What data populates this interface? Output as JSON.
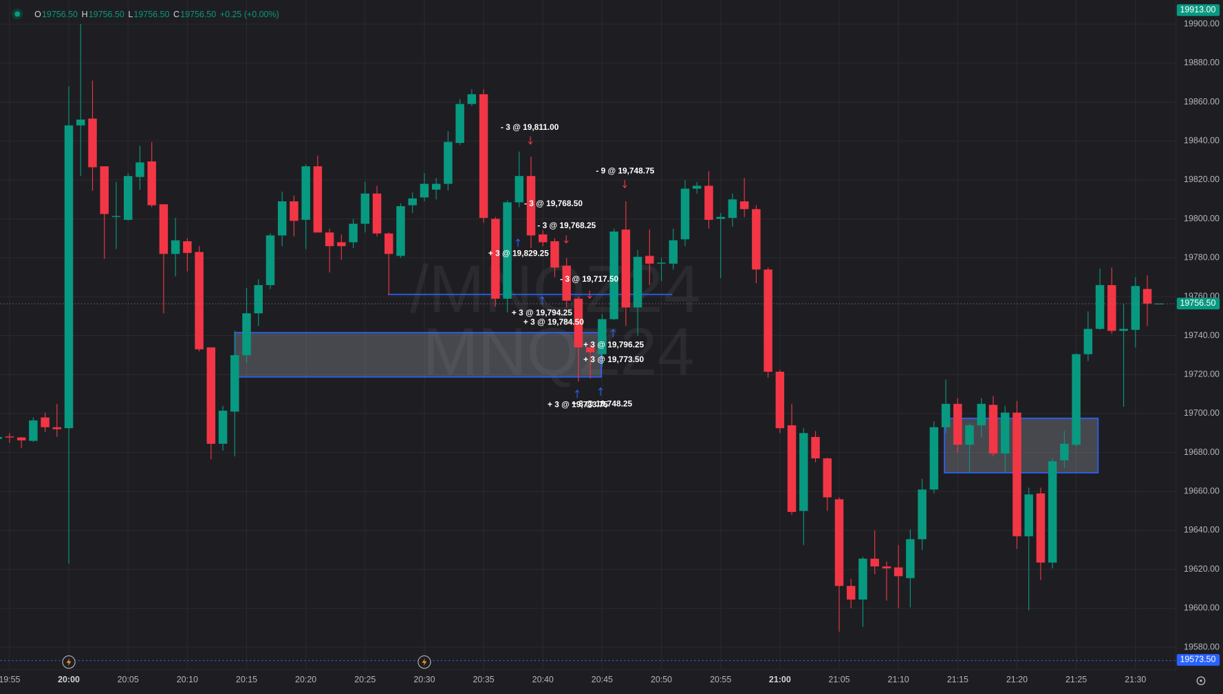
{
  "header": {
    "ohlc": [
      {
        "key": "O",
        "value": "19756.50"
      },
      {
        "key": "H",
        "value": "19756.50"
      },
      {
        "key": "L",
        "value": "19756.50"
      },
      {
        "key": "C",
        "value": "19756.50"
      }
    ],
    "change": "+0.25 (+0.00%)"
  },
  "chart_data": {
    "type": "candlestick",
    "watermark": [
      "/MNQZ24",
      "MNQZ24"
    ],
    "up_color": "#089981",
    "down_color": "#f23645",
    "grid": true,
    "ylim": [
      19568.4,
      19912.4
    ],
    "yticks": [
      {
        "value": 19580,
        "label": "19580.00"
      },
      {
        "value": 19600,
        "label": "19600.00"
      },
      {
        "value": 19620,
        "label": "19620.00"
      },
      {
        "value": 19640,
        "label": "19640.00"
      },
      {
        "value": 19660,
        "label": "19660.00"
      },
      {
        "value": 19680,
        "label": "19680.00"
      },
      {
        "value": 19700,
        "label": "19700.00"
      },
      {
        "value": 19720,
        "label": "19720.00"
      },
      {
        "value": 19740,
        "label": "19740.00"
      },
      {
        "value": 19760,
        "label": "19760.00"
      },
      {
        "value": 19780,
        "label": "19780.00"
      },
      {
        "value": 19800,
        "label": "19800.00"
      },
      {
        "value": 19820,
        "label": "19820.00"
      },
      {
        "value": 19840,
        "label": "19840.00"
      },
      {
        "value": 19860,
        "label": "19860.00"
      },
      {
        "value": 19880,
        "label": "19880.00"
      },
      {
        "value": 19900,
        "label": "19900.00"
      }
    ],
    "categories": [
      null,
      "19:55",
      null,
      null,
      null,
      null,
      "20:00",
      null,
      null,
      null,
      null,
      "20:05",
      null,
      null,
      null,
      null,
      "20:10",
      null,
      null,
      null,
      null,
      "20:15",
      null,
      null,
      null,
      null,
      "20:20",
      null,
      null,
      null,
      null,
      "20:25",
      null,
      null,
      null,
      null,
      "20:30",
      null,
      null,
      null,
      null,
      "20:35",
      null,
      null,
      null,
      null,
      "20:40",
      null,
      null,
      null,
      null,
      "20:45",
      null,
      null,
      null,
      null,
      "20:50",
      null,
      null,
      null,
      null,
      "20:55",
      null,
      null,
      null,
      null,
      "21:00",
      null,
      null,
      null,
      null,
      "21:05",
      null,
      null,
      null,
      null,
      "21:10",
      null,
      null,
      null,
      null,
      "21:15",
      null,
      null,
      null,
      null,
      "21:20",
      null,
      null,
      null,
      null,
      "21:25",
      null,
      null,
      null,
      null,
      "21:30",
      null,
      null
    ],
    "open": [
      19687,
      19688.25,
      19687.75,
      19686,
      19698,
      19693,
      19692.5,
      19848,
      19851.5,
      19827,
      19801,
      19799.5,
      19821.5,
      19829.5,
      19807.5,
      19782,
      19788.5,
      19783,
      19734,
      19684.5,
      19701,
      19730,
      19751.5,
      19766,
      19791.5,
      19809,
      19799.5,
      19827,
      19793,
      19788,
      19788,
      19797.5,
      19813,
      19792.5,
      19781,
      19807,
      19811,
      19815,
      19818,
      19839,
      19859,
      19864,
      19800,
      19759,
      19808.5,
      19822,
      19792,
      19788.5,
      19776,
      19759,
      19734,
      19730.5,
      19748.5,
      19794.5,
      19754.5,
      19781,
      19777,
      19777,
      19789.5,
      19815.5,
      19817,
      19800,
      19800.5,
      19809,
      19805,
      19774,
      19721.5,
      19694,
      19650,
      19688,
      19677,
      19656,
      19611.5,
      19604.5,
      19625.5,
      19621.5,
      19621,
      19615.5,
      19635.5,
      19661,
      19693,
      19705,
      19684,
      19694,
      19704.5,
      19679.5,
      19700.5,
      19637,
      19659,
      19623.5,
      19676,
      19684,
      19730.5,
      19743.5,
      19766,
      19742.5,
      19743,
      19764,
      19756.5
    ],
    "high": [
      19689,
      19690,
      19688,
      19698,
      19700.5,
      19705,
      19868,
      19900,
      19871,
      19827,
      19819,
      19823.5,
      19837.5,
      19839.5,
      19807.5,
      19800.5,
      19790,
      19786,
      19734,
      19704,
      19742.5,
      19764.5,
      19769,
      19792.5,
      19814,
      19812,
      19828,
      19832.5,
      19795,
      19792,
      19800,
      19819,
      19817,
      19793,
      19808,
      19813.5,
      19823.5,
      19821,
      19845,
      19861.5,
      19866.5,
      19866.5,
      19801,
      19809.5,
      19834.5,
      19832,
      19794,
      19790,
      19780,
      19760,
      19736,
      19751,
      19795,
      19809,
      19784,
      19794.5,
      19780,
      19795,
      19820,
      19819,
      19824.5,
      19803,
      19813,
      19821,
      19807,
      19775,
      19722.5,
      19705,
      19692.5,
      19691,
      19677.5,
      19657,
      19615,
      19626.5,
      19640,
      19624,
      19632.5,
      19640.5,
      19666.5,
      19696,
      19717.5,
      19708,
      19695,
      19708,
      19709,
      19704,
      19706.5,
      19662,
      19662,
      19677,
      19691,
      19731,
      19752.5,
      19774.5,
      19775,
      19756.5,
      19770,
      19771,
      19756.5
    ],
    "low": [
      19686,
      19685,
      19682.25,
      19685.5,
      19690.5,
      19688,
      19623,
      19822,
      19814.5,
      19779.5,
      19784.5,
      19799,
      19815,
      19806,
      19751.5,
      19770.5,
      19773,
      19732,
      19676.5,
      19681,
      19678,
      19726,
      19745,
      19764,
      19786,
      19791,
      19784.5,
      19793,
      19772.5,
      19779,
      19785,
      19793,
      19791,
      19761,
      19780,
      19803,
      19809,
      19810,
      19814.5,
      19838,
      19858,
      19798,
      19755,
      19752,
      19806,
      19785,
      19786,
      19770,
      19754.5,
      19716.5,
      19718,
      19724,
      19748,
      19745,
      19740,
      19766,
      19768,
      19774,
      19786,
      19813,
      19795,
      19769.5,
      19796,
      19801,
      19767,
      19718.5,
      19690,
      19648,
      19632.5,
      19675,
      19650,
      19588,
      19600,
      19590.5,
      19617.5,
      19604,
      19600,
      19600.5,
      19630,
      19659,
      19690,
      19680,
      19670,
      19688,
      19678,
      19670,
      19630.5,
      19599,
      19614.5,
      19620.5,
      19672,
      19683,
      19727,
      19743,
      19741,
      19703.5,
      19734,
      19745,
      19756.5
    ],
    "close": [
      19688,
      19687.75,
      19686.25,
      19696.5,
      19693,
      19692,
      19848,
      19851,
      19826.5,
      19802.5,
      19801.5,
      19822,
      19829,
      19807,
      19782,
      19789,
      19782.5,
      19733,
      19684.5,
      19701.5,
      19730,
      19751.5,
      19766,
      19791.5,
      19809,
      19799,
      19827,
      19793,
      19786,
      19786,
      19797.5,
      19813,
      19792.5,
      19782,
      19806.5,
      19810.5,
      19818,
      19818,
      19839.5,
      19859,
      19864,
      19800.5,
      19759,
      19808.5,
      19822,
      19791.5,
      19788,
      19775,
      19758,
      19734,
      19731.5,
      19748.5,
      19793.5,
      19754.5,
      19780.5,
      19777,
      19777.5,
      19789,
      19815.5,
      19817,
      19799.5,
      19801,
      19810,
      19805,
      19774,
      19721.5,
      19692.5,
      19649.5,
      19690,
      19677,
      19657,
      19611.5,
      19604.5,
      19625.5,
      19621.5,
      19620.5,
      19616.5,
      19635.5,
      19661,
      19693,
      19705,
      19684,
      19694,
      19705,
      19679.5,
      19700.5,
      19637,
      19658.5,
      19623.5,
      19675.5,
      19684.5,
      19730.5,
      19743.5,
      19766,
      19742.5,
      19743.5,
      19765.5,
      19756.5,
      19756.5
    ],
    "annotations": [
      "- 3 @ 19,811.00",
      "- 9 @ 19,748.75",
      "- 3 @ 19,768.50",
      "- 3 @ 19,768.25",
      "+ 3 @ 19,829.25",
      "- 3 @ 19,717.50",
      "+ 3 @ 19,794.25",
      "+ 3 @ 19,784.50",
      "+ 3 @ 19,796.25",
      "+ 3 @ 19,773.50",
      "+ 3 @ 19,733.75",
      "+ 3 @ 19,748.25"
    ],
    "price_markers": [
      {
        "value": 19913,
        "label": "19913.00",
        "color": "#089981"
      },
      {
        "value": 19756.5,
        "label": "19756.50",
        "color": "#089981"
      },
      {
        "value": 19573.5,
        "label": "19573.50",
        "color": "#2962ff"
      }
    ]
  }
}
